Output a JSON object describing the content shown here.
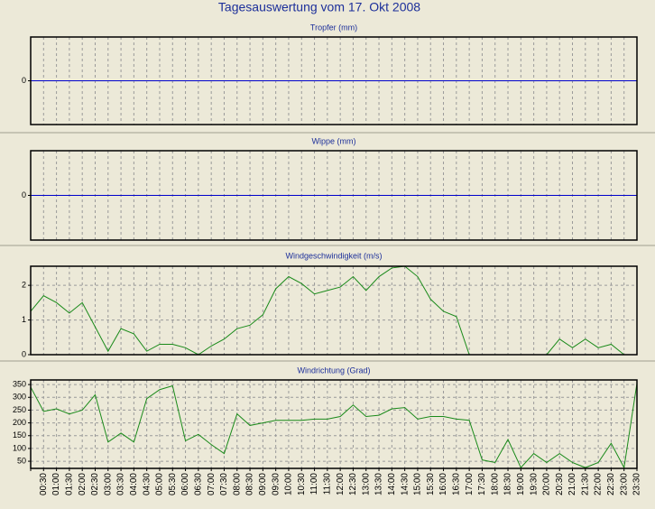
{
  "title": "Tagesauswertung vom 17. Okt 2008",
  "chart_data": [
    {
      "type": "line",
      "title": "Tropfer (mm)",
      "ylim": [
        -1,
        1
      ],
      "yticks": [
        0
      ],
      "grid": true,
      "color": "#0000cc",
      "values": [
        0,
        0,
        0,
        0,
        0,
        0,
        0,
        0,
        0,
        0,
        0,
        0,
        0,
        0,
        0,
        0,
        0,
        0,
        0,
        0,
        0,
        0,
        0,
        0,
        0,
        0,
        0,
        0,
        0,
        0,
        0,
        0,
        0,
        0,
        0,
        0,
        0,
        0,
        0,
        0,
        0,
        0,
        0,
        0,
        0,
        0,
        0,
        0
      ]
    },
    {
      "type": "line",
      "title": "Wippe (mm)",
      "ylim": [
        -1,
        1
      ],
      "yticks": [
        0
      ],
      "grid": true,
      "color": "#0000cc",
      "values": [
        0,
        0,
        0,
        0,
        0,
        0,
        0,
        0,
        0,
        0,
        0,
        0,
        0,
        0,
        0,
        0,
        0,
        0,
        0,
        0,
        0,
        0,
        0,
        0,
        0,
        0,
        0,
        0,
        0,
        0,
        0,
        0,
        0,
        0,
        0,
        0,
        0,
        0,
        0,
        0,
        0,
        0,
        0,
        0,
        0,
        0,
        0,
        0
      ]
    },
    {
      "type": "line",
      "title": "Windgeschwindigkeit (m/s)",
      "ylim": [
        0,
        2.55
      ],
      "yticks": [
        0,
        1,
        2
      ],
      "grid": true,
      "color": "#1a8a1a",
      "values": [
        1.25,
        1.7,
        1.5,
        1.2,
        1.5,
        0.8,
        0.1,
        0.75,
        0.6,
        0.1,
        0.3,
        0.3,
        0.2,
        0,
        0.25,
        0.45,
        0.75,
        0.85,
        1.15,
        1.9,
        2.25,
        2.05,
        1.75,
        1.85,
        1.95,
        2.25,
        1.85,
        2.25,
        2.5,
        2.55,
        2.25,
        1.6,
        1.25,
        1.1,
        0,
        null,
        null,
        null,
        null,
        null,
        0,
        0.45,
        0.2,
        0.45,
        0.2,
        0.3,
        0,
        null
      ]
    },
    {
      "type": "line",
      "title": "Windrichtung (Grad)",
      "ylim": [
        22,
        368
      ],
      "yticks": [
        50,
        100,
        150,
        200,
        250,
        300,
        350
      ],
      "grid": true,
      "color": "#1a8a1a",
      "categories": [
        null,
        "00:30",
        "01:00",
        "01:30",
        "02:00",
        "02:30",
        "03:00",
        "03:30",
        "04:00",
        "04:30",
        "05:00",
        "05:30",
        "06:00",
        "06:30",
        "07:00",
        "07:30",
        "08:00",
        "08:30",
        "09:00",
        "09:30",
        "10:00",
        "10:30",
        "11:00",
        "11:30",
        "12:00",
        "12:30",
        "13:00",
        "13:30",
        "14:00",
        "14:30",
        "15:00",
        "15:30",
        "16:00",
        "16:30",
        "17:00",
        "17:30",
        "18:00",
        "18:30",
        "19:00",
        "19:30",
        "20:00",
        "20:30",
        "21:00",
        "21:30",
        "22:00",
        "22:30",
        "23:00",
        "23:30"
      ],
      "values": [
        340,
        245,
        255,
        235,
        250,
        310,
        125,
        160,
        125,
        295,
        330,
        345,
        130,
        155,
        115,
        80,
        235,
        190,
        200,
        210,
        210,
        210,
        215,
        215,
        225,
        270,
        225,
        230,
        255,
        260,
        215,
        225,
        225,
        215,
        210,
        55,
        45,
        135,
        25,
        80,
        45,
        80,
        45,
        25,
        45,
        120,
        25,
        355
      ]
    }
  ]
}
